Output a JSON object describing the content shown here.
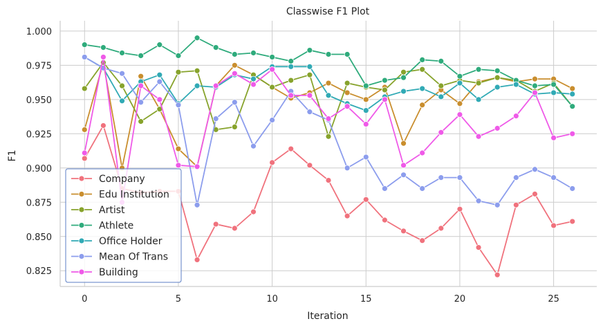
{
  "chart_data": {
    "type": "line",
    "title": "Classwise F1 Plot",
    "xlabel": "Iteration",
    "ylabel": "F1",
    "xlim": [
      -1.3,
      27.3
    ],
    "ylim": [
      0.8135,
      1.0075
    ],
    "xticks": [
      0,
      5,
      10,
      15,
      20,
      25
    ],
    "yticks": [
      0.825,
      0.85,
      0.875,
      0.9,
      0.925,
      0.95,
      0.975,
      1.0
    ],
    "ytick_labels": [
      "0.825",
      "0.850",
      "0.875",
      "0.900",
      "0.925",
      "0.950",
      "0.975",
      "1.000"
    ],
    "grid": true,
    "legend_position": "lower-left",
    "x": [
      0,
      1,
      2,
      3,
      4,
      5,
      6,
      7,
      8,
      9,
      10,
      11,
      12,
      13,
      14,
      15,
      16,
      17,
      18,
      19,
      20,
      21,
      22,
      23,
      24,
      25,
      26
    ],
    "series": [
      {
        "name": "Company",
        "color": "#f0727d",
        "values": [
          0.907,
          0.931,
          0.885,
          0.882,
          0.883,
          0.883,
          0.833,
          0.859,
          0.856,
          0.868,
          0.904,
          0.914,
          0.902,
          0.891,
          0.865,
          0.877,
          0.862,
          0.854,
          0.847,
          0.856,
          0.87,
          0.842,
          0.822,
          0.873,
          0.881,
          0.858,
          0.861
        ]
      },
      {
        "name": "Edu Institution",
        "color": "#c98e2e",
        "values": [
          0.928,
          0.977,
          0.9,
          0.967,
          0.943,
          0.914,
          0.901,
          0.96,
          0.975,
          0.968,
          0.959,
          0.951,
          0.955,
          0.962,
          0.955,
          0.95,
          0.959,
          0.918,
          0.946,
          0.957,
          0.947,
          0.963,
          0.966,
          0.963,
          0.965,
          0.965,
          0.958
        ]
      },
      {
        "name": "Artist",
        "color": "#87a32c",
        "values": [
          0.958,
          0.977,
          0.96,
          0.934,
          0.943,
          0.97,
          0.971,
          0.928,
          0.93,
          0.968,
          0.959,
          0.964,
          0.968,
          0.923,
          0.962,
          0.959,
          0.957,
          0.97,
          0.972,
          0.96,
          0.964,
          0.962,
          0.966,
          0.964,
          0.956,
          0.962,
          0.945
        ]
      },
      {
        "name": "Athlete",
        "color": "#2fab7c",
        "values": [
          0.99,
          0.988,
          0.984,
          0.982,
          0.99,
          0.982,
          0.995,
          0.988,
          0.983,
          0.984,
          0.981,
          0.978,
          0.986,
          0.983,
          0.983,
          0.96,
          0.964,
          0.966,
          0.979,
          0.978,
          0.967,
          0.972,
          0.971,
          0.964,
          0.96,
          0.961,
          0.945
        ]
      },
      {
        "name": "Office Holder",
        "color": "#31aab5",
        "values": [
          0.981,
          0.973,
          0.949,
          0.963,
          0.968,
          0.947,
          0.96,
          0.959,
          0.968,
          0.965,
          0.974,
          0.974,
          0.974,
          0.953,
          0.947,
          0.942,
          0.952,
          0.956,
          0.958,
          0.952,
          0.962,
          0.95,
          0.959,
          0.961,
          0.954,
          0.955,
          0.954
        ]
      },
      {
        "name": "Mean Of Trans",
        "color": "#8c9ded",
        "values": [
          0.981,
          0.973,
          0.969,
          0.948,
          0.963,
          0.946,
          0.873,
          0.936,
          0.948,
          0.916,
          0.935,
          0.956,
          0.941,
          0.935,
          0.9,
          0.908,
          0.885,
          0.895,
          0.885,
          0.893,
          0.893,
          0.876,
          0.873,
          0.893,
          0.899,
          0.893,
          0.885
        ]
      },
      {
        "name": "Building",
        "color": "#ef5ae8",
        "values": [
          0.911,
          0.981,
          0.875,
          0.96,
          0.95,
          0.902,
          0.901,
          0.96,
          0.969,
          0.961,
          0.972,
          0.953,
          0.953,
          0.936,
          0.945,
          0.932,
          0.95,
          0.902,
          0.911,
          0.926,
          0.939,
          0.923,
          0.929,
          0.938,
          0.955,
          0.922,
          0.925
        ]
      }
    ]
  }
}
